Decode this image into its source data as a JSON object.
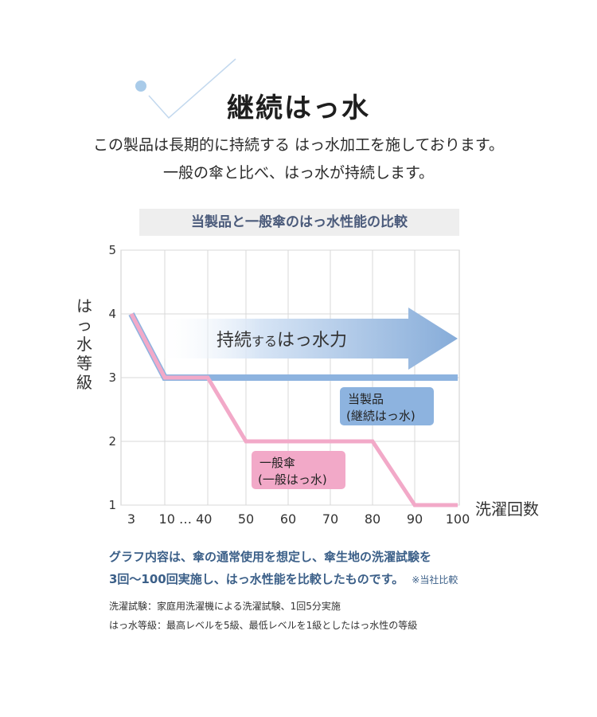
{
  "header": {
    "title": "継続はっ水",
    "intro_line1": "この製品は長期的に持続する はっ水加工を施しております。",
    "intro_line2": "一般の傘と比べ、はっ水が持続します。"
  },
  "chart_data": {
    "type": "line",
    "title": "当製品と一般傘のはっ水性能の比較",
    "xlabel": "洗濯回数",
    "ylabel": "はっ水等級",
    "xticks": [
      "3",
      "10 … 40",
      "50",
      "60",
      "70",
      "80",
      "90",
      "100"
    ],
    "yticks": [
      "1",
      "2",
      "3",
      "4",
      "5"
    ],
    "ylim": [
      1,
      5
    ],
    "grid": true,
    "arrow_label_main": "持続",
    "arrow_label_small": "する",
    "arrow_label_tail": "はっ水力",
    "series": [
      {
        "name": "当製品\n(継続はっ水)",
        "label_line1": "当製品",
        "label_line2": "(継続はっ水)",
        "color": "#8db3df",
        "x": [
          3,
          10,
          40,
          50,
          60,
          70,
          80,
          90,
          100
        ],
        "y": [
          4,
          3,
          3,
          3,
          3,
          3,
          3,
          3,
          3
        ]
      },
      {
        "name": "一般傘\n(一般はっ水)",
        "label_line1": "一般傘",
        "label_line2": "(一般はっ水)",
        "color": "#f2a9c8",
        "x": [
          3,
          10,
          40,
          50,
          60,
          70,
          80,
          90,
          100
        ],
        "y": [
          4,
          3,
          3,
          2,
          2,
          2,
          2,
          1,
          1
        ]
      }
    ]
  },
  "description": {
    "line1": "グラフ内容は、傘の通常使用を想定し、傘生地の洗濯試験を",
    "line2": "3回〜100回実施し、はっ水性能を比較したものです。",
    "note": "※当社比較"
  },
  "footnotes": {
    "wash_test": "洗濯試験：家庭用洗濯機による洗濯試験、1回5分実施",
    "grade": "はっ水等級：最高レベルを5級、最低レベルを1級としたはっ水性の等級"
  }
}
